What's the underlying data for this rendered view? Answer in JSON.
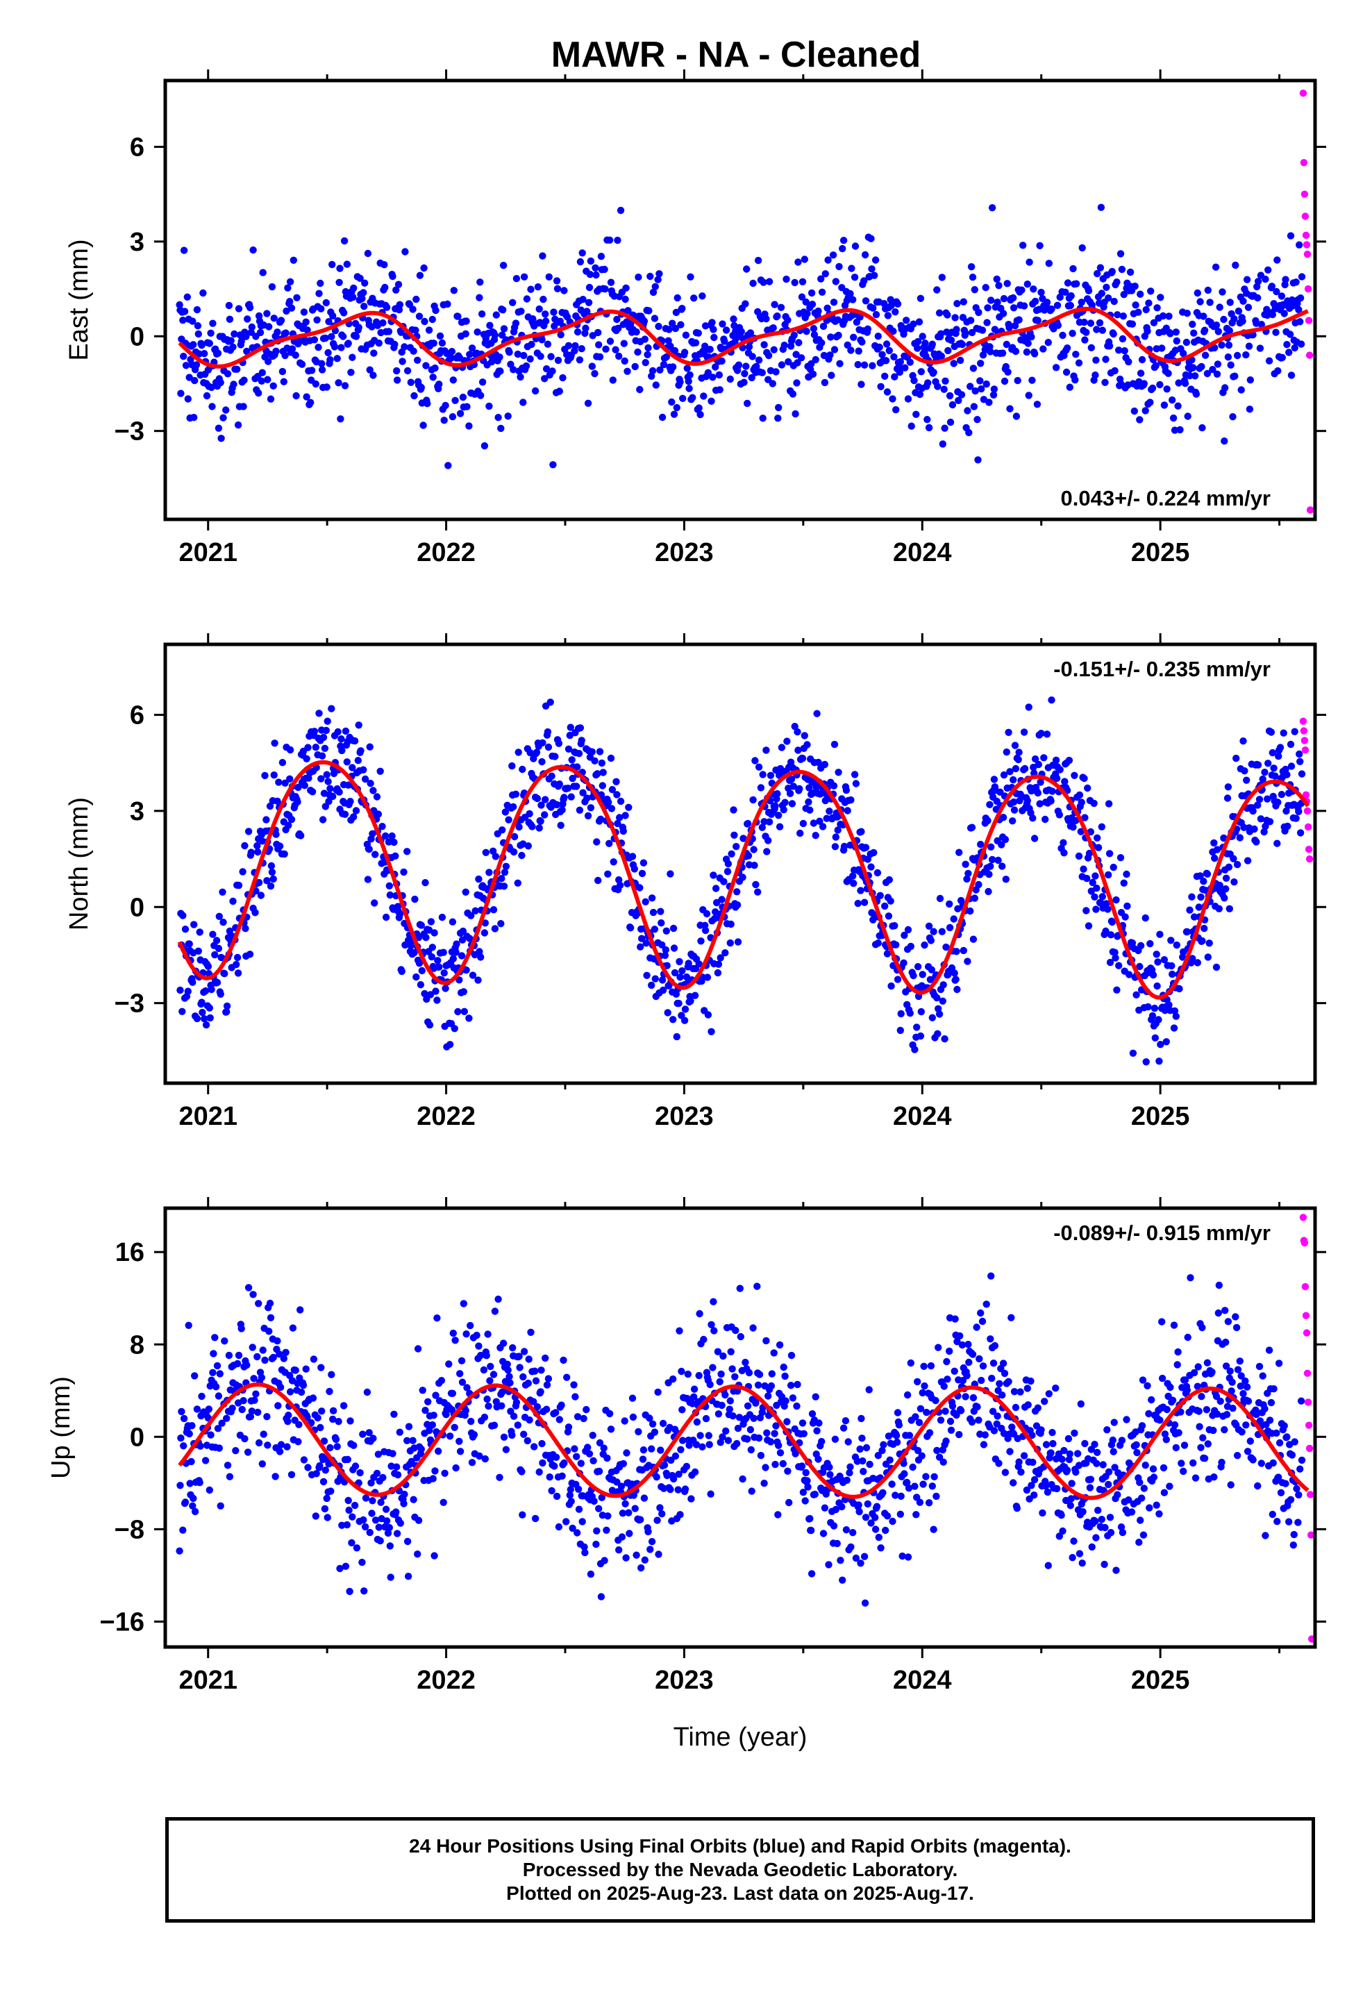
{
  "title": "MAWR  - NA - Cleaned",
  "xlabel": "Time (year)",
  "footer": [
    "24 Hour Positions Using Final Orbits (blue) and Rapid Orbits (magenta).",
    "Processed by the Nevada Geodetic Laboratory.",
    "Plotted on 2025-Aug-23. Last data on 2025-Aug-17."
  ],
  "colors": {
    "final": "#0000ff",
    "rapid": "#ff00ff",
    "model": "#ff0000",
    "frame": "#000000"
  },
  "chart_data": [
    {
      "type": "scatter",
      "name": "east",
      "ylabel": "East (mm)",
      "xlim": [
        2020.82,
        2025.65
      ],
      "ylim": [
        -5.8,
        8.1
      ],
      "xticks": [
        "2021",
        "2022",
        "2023",
        "2024",
        "2025"
      ],
      "yticks": [
        6,
        3,
        0,
        -3
      ],
      "ytick_labels": [
        "6",
        "3",
        "0",
        "−3"
      ],
      "rate_label": "0.043+/- 0.224 mm/yr",
      "rate_label_position": "bottom-right",
      "model": {
        "mean": 0.0,
        "trend_per_yr": 0.043,
        "annual_cos": -0.55,
        "annual_sin": -0.45,
        "semiannual_cos": -0.25,
        "semiannual_sin": 0.0
      },
      "scatter_sigma": 1.1,
      "rapid_points": [
        [
          2025.6,
          7.7
        ],
        [
          2025.603,
          5.5
        ],
        [
          2025.606,
          4.5
        ],
        [
          2025.609,
          3.8
        ],
        [
          2025.612,
          3.2
        ],
        [
          2025.615,
          2.9
        ],
        [
          2025.618,
          2.6
        ],
        [
          2025.621,
          1.5
        ],
        [
          2025.624,
          0.5
        ],
        [
          2025.627,
          -0.6
        ],
        [
          2025.63,
          -5.5
        ]
      ],
      "rapid_note": "magenta (rapid orbit) points, last days of record"
    },
    {
      "type": "scatter",
      "name": "north",
      "ylabel": "North (mm)",
      "xlim": [
        2020.82,
        2025.65
      ],
      "ylim": [
        -5.5,
        8.2
      ],
      "xticks": [
        "2021",
        "2022",
        "2023",
        "2024",
        "2025"
      ],
      "yticks": [
        6,
        3,
        0,
        -3
      ],
      "ytick_labels": [
        "6",
        "3",
        "0",
        "−3"
      ],
      "rate_label": "-0.151+/- 0.235 mm/yr",
      "rate_label_position": "top-right",
      "model": {
        "mean": 1.2,
        "trend_per_yr": -0.151,
        "annual_cos": -3.4,
        "annual_sin": 0.2,
        "semiannual_cos": -0.35,
        "semiannual_sin": 0.0
      },
      "scatter_sigma": 0.95,
      "rapid_points": [
        [
          2025.6,
          5.8
        ],
        [
          2025.603,
          5.5
        ],
        [
          2025.606,
          5.2
        ],
        [
          2025.609,
          4.9
        ],
        [
          2025.612,
          3.5
        ],
        [
          2025.615,
          3.3
        ],
        [
          2025.618,
          3.0
        ],
        [
          2025.621,
          2.5
        ],
        [
          2025.624,
          1.8
        ],
        [
          2025.627,
          1.5
        ]
      ],
      "rapid_note": "magenta (rapid orbit) points, last days of record"
    },
    {
      "type": "scatter",
      "name": "up",
      "ylabel": "Up (mm)",
      "xlim": [
        2020.82,
        2025.65
      ],
      "ylim": [
        -18.2,
        19.8
      ],
      "xticks": [
        "2021",
        "2022",
        "2023",
        "2024",
        "2025"
      ],
      "yticks": [
        16,
        8,
        0,
        -8,
        -16
      ],
      "ytick_labels": [
        "16",
        "8",
        "0",
        "−8",
        "−16"
      ],
      "rate_label": "-0.089+/- 0.915 mm/yr",
      "rate_label_position": "top-right",
      "model": {
        "mean": -0.4,
        "trend_per_yr": -0.089,
        "annual_cos": 1.2,
        "annual_sin": 4.6,
        "semiannual_cos": 0.0,
        "semiannual_sin": 0.0
      },
      "scatter_sigma": 3.6,
      "rapid_points": [
        [
          2025.6,
          19.0
        ],
        [
          2025.603,
          17.0
        ],
        [
          2025.606,
          16.8
        ],
        [
          2025.609,
          13.0
        ],
        [
          2025.612,
          10.5
        ],
        [
          2025.615,
          9.0
        ],
        [
          2025.618,
          5.5
        ],
        [
          2025.621,
          3.0
        ],
        [
          2025.624,
          1.0
        ],
        [
          2025.627,
          -1.0
        ],
        [
          2025.63,
          -5.0
        ],
        [
          2025.633,
          -8.5
        ],
        [
          2025.636,
          -17.5
        ]
      ],
      "rapid_note": "magenta (rapid orbit) points, last days of record"
    }
  ]
}
